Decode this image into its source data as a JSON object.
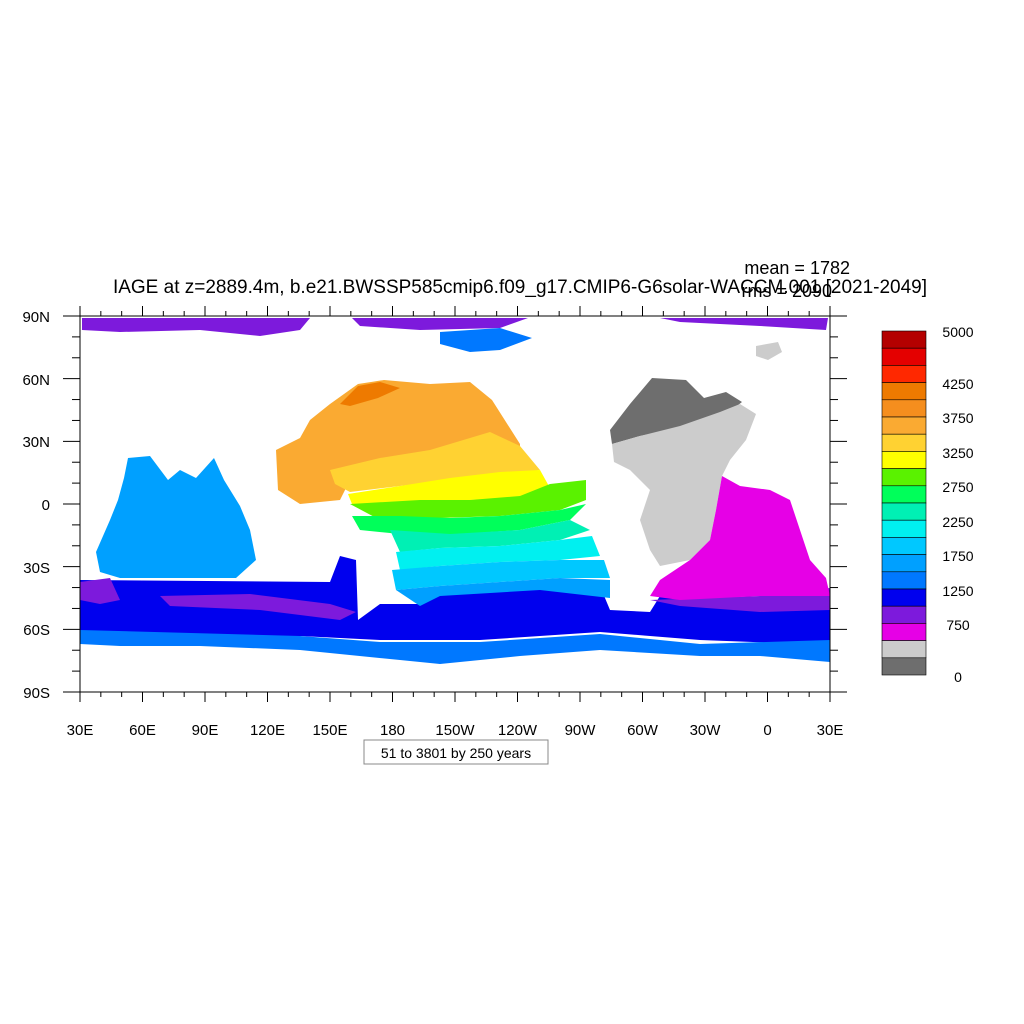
{
  "title": "IAGE at z=2889.4m, b.e21.BWSSP585cmip6.f09_g17.CMIP6-G6solar-WACCM.001 [2021-2049]",
  "stats": {
    "mean": "mean = 1782",
    "rms": "rms = 2090"
  },
  "contour_info": "51 to 3801 by 250 years",
  "chart_data": {
    "type": "heatmap",
    "variable": "IAGE",
    "depth": "z=2889.4m",
    "x_ticks": [
      "30E",
      "60E",
      "90E",
      "120E",
      "150E",
      "180",
      "150W",
      "120W",
      "90W",
      "60W",
      "30W",
      "0",
      "30E"
    ],
    "y_ticks": [
      "90N",
      "60N",
      "30N",
      "0",
      "30S",
      "60S",
      "90S"
    ],
    "xlim": [
      30,
      390
    ],
    "ylim": [
      -90,
      90
    ],
    "colorbar": {
      "labels": [
        "5000",
        "4250",
        "3750",
        "3250",
        "2750",
        "2250",
        "1750",
        "1250",
        "750",
        "0"
      ],
      "colors": [
        "#B40000",
        "#E40000",
        "#FF2800",
        "#EE7A00",
        "#F58E1E",
        "#FAAA32",
        "#FFD232",
        "#FFFF00",
        "#5AF200",
        "#00FF5A",
        "#00F0B4",
        "#00F0F0",
        "#00C8FF",
        "#00A0FF",
        "#0078FF",
        "#0000EE",
        "#7D1ADC",
        "#E600E6",
        "#CCCCCC",
        "#6E6E6E"
      ]
    }
  }
}
